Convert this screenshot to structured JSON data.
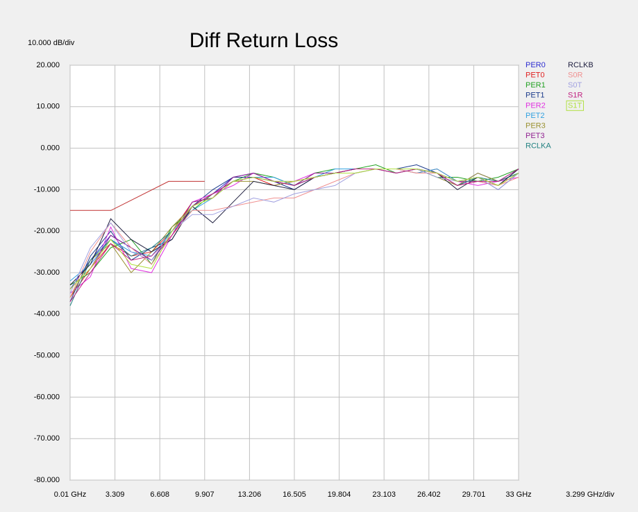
{
  "chart_data": {
    "type": "line",
    "title": "Diff Return Loss",
    "y_scale_label": "10.000 dB/div",
    "x_scale_label": "3.299 GHz/div",
    "x": [
      0.01,
      1.5,
      3,
      4.5,
      6,
      7.5,
      9,
      10.5,
      12,
      13.5,
      15,
      16.5,
      18,
      19.5,
      21,
      22.5,
      24,
      25.5,
      27,
      28.5,
      30,
      31.5,
      33
    ],
    "xlim": [
      0.01,
      33
    ],
    "ylim": [
      -80,
      20
    ],
    "xticks": [
      {
        "value": 0.01,
        "label": "0.01 GHz"
      },
      3.309,
      6.608,
      9.907,
      13.206,
      16.505,
      19.804,
      23.103,
      26.402,
      29.701,
      {
        "value": 33,
        "label": "33 GHz"
      }
    ],
    "yticks": [
      {
        "value": 20,
        "label": "20.000"
      },
      {
        "value": 10,
        "label": "10.000"
      },
      {
        "value": 0,
        "label": "0.000"
      },
      {
        "value": -10,
        "label": "-10.000"
      },
      {
        "value": -20,
        "label": "-20.000"
      },
      {
        "value": -30,
        "label": "-30.000"
      },
      {
        "value": -40,
        "label": "-40.000"
      },
      {
        "value": -50,
        "label": "-50.000"
      },
      {
        "value": -60,
        "label": "-60.000"
      },
      {
        "value": -70,
        "label": "-70.000"
      },
      {
        "value": -80,
        "label": "-80.000"
      }
    ],
    "grid": true,
    "legend_position": "right",
    "limit_line": {
      "color": "#c03030",
      "x": [
        0.01,
        3.02,
        7.26,
        9.907
      ],
      "values": [
        -15,
        -15,
        -8,
        -8
      ]
    },
    "series": [
      {
        "name": "PER0",
        "color": "#2b2bd0",
        "values": [
          -34,
          -27,
          -21,
          -24,
          -27,
          -21,
          -14,
          -11,
          -7,
          -6,
          -8,
          -9,
          -7,
          -6,
          -5,
          -5,
          -6,
          -5,
          -6,
          -9,
          -6,
          -8,
          -5
        ]
      },
      {
        "name": "PET0",
        "color": "#e02020",
        "values": [
          -36,
          -29,
          -23,
          -26,
          -25,
          -20,
          -13,
          -12,
          -8,
          -7,
          -9,
          -8,
          -7,
          -6,
          -6,
          -5,
          -5,
          -6,
          -5,
          -8,
          -7,
          -9,
          -6
        ]
      },
      {
        "name": "PER1",
        "color": "#20a020",
        "values": [
          -33,
          -30,
          -24,
          -22,
          -28,
          -19,
          -15,
          -11,
          -8,
          -6,
          -7,
          -9,
          -6,
          -5,
          -5,
          -4,
          -6,
          -5,
          -7,
          -7,
          -8,
          -7,
          -5
        ]
      },
      {
        "name": "PET1",
        "color": "#1a3a8a",
        "values": [
          -37,
          -26,
          -20,
          -27,
          -24,
          -22,
          -14,
          -10,
          -7,
          -7,
          -8,
          -10,
          -7,
          -6,
          -5,
          -5,
          -5,
          -4,
          -6,
          -9,
          -7,
          -10,
          -6
        ]
      },
      {
        "name": "PER2",
        "color": "#e030e0",
        "values": [
          -35,
          -31,
          -19,
          -29,
          -30,
          -21,
          -13,
          -11,
          -9,
          -6,
          -8,
          -8,
          -6,
          -6,
          -6,
          -5,
          -6,
          -5,
          -6,
          -8,
          -9,
          -8,
          -7
        ]
      },
      {
        "name": "PET2",
        "color": "#30a0e0",
        "values": [
          -32,
          -28,
          -22,
          -25,
          -26,
          -20,
          -15,
          -12,
          -8,
          -7,
          -7,
          -9,
          -7,
          -5,
          -5,
          -5,
          -5,
          -6,
          -5,
          -8,
          -7,
          -9,
          -5
        ]
      },
      {
        "name": "PER3",
        "color": "#9a9030",
        "values": [
          -36,
          -27,
          -23,
          -30,
          -25,
          -19,
          -14,
          -11,
          -8,
          -8,
          -9,
          -8,
          -7,
          -6,
          -6,
          -5,
          -6,
          -5,
          -7,
          -9,
          -6,
          -8,
          -6
        ]
      },
      {
        "name": "PET3",
        "color": "#902090",
        "values": [
          -34,
          -29,
          -21,
          -24,
          -27,
          -21,
          -13,
          -12,
          -7,
          -6,
          -8,
          -9,
          -6,
          -6,
          -5,
          -5,
          -5,
          -5,
          -6,
          -8,
          -8,
          -9,
          -5
        ]
      },
      {
        "name": "RCLKA",
        "color": "#208080",
        "values": [
          -38,
          -27,
          -22,
          -26,
          -24,
          -20,
          -14,
          -11,
          -8,
          -7,
          -8,
          -9,
          -7,
          -6,
          -6,
          -5,
          -6,
          -5,
          -6,
          -9,
          -7,
          -8,
          -6
        ]
      },
      {
        "name": "RCLKB",
        "color": "#202040",
        "values": [
          -33,
          -28,
          -17,
          -22,
          -25,
          -22,
          -14,
          -18,
          -13,
          -8,
          -9,
          -10,
          -7,
          -6,
          -5,
          -5,
          -5,
          -5,
          -6,
          -10,
          -7,
          -9,
          -5
        ]
      },
      {
        "name": "S0R",
        "color": "#f09090",
        "values": [
          -36,
          -25,
          -18,
          -24,
          -28,
          -21,
          -15,
          -15,
          -14,
          -13,
          -12,
          -12,
          -10,
          -8,
          -6,
          -5,
          -5,
          -6,
          -6,
          -9,
          -8,
          -9,
          -7
        ]
      },
      {
        "name": "S0T",
        "color": "#a0a0e0",
        "values": [
          -35,
          -24,
          -18,
          -25,
          -27,
          -20,
          -16,
          -16,
          -14,
          -12,
          -13,
          -11,
          -10,
          -9,
          -6,
          -5,
          -6,
          -5,
          -7,
          -8,
          -7,
          -10,
          -6
        ]
      },
      {
        "name": "S1R",
        "color": "#c02080",
        "values": [
          -37,
          -30,
          -23,
          -27,
          -26,
          -21,
          -14,
          -11,
          -8,
          -7,
          -8,
          -9,
          -7,
          -6,
          -5,
          -5,
          -6,
          -5,
          -6,
          -9,
          -8,
          -8,
          -5
        ]
      },
      {
        "name": "S1T",
        "color": "#b0e040",
        "values": [
          -34,
          -29,
          -22,
          -28,
          -29,
          -20,
          -14,
          -12,
          -8,
          -7,
          -8,
          -8,
          -7,
          -6,
          -6,
          -5,
          -5,
          -5,
          -6,
          -8,
          -7,
          -9,
          -6
        ]
      }
    ]
  }
}
